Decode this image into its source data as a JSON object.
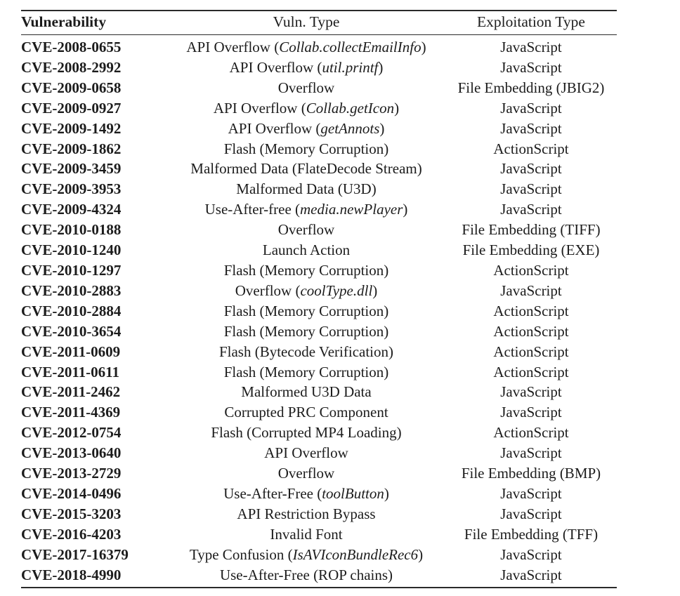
{
  "table": {
    "headers": [
      "Vulnerability",
      "Vuln. Type",
      "Exploitation Type"
    ],
    "rows": [
      {
        "cve": "CVE-2008-0655",
        "vuln_type": "API Overflow (*Collab.collectEmailInfo*)",
        "exploitation": "JavaScript"
      },
      {
        "cve": "CVE-2008-2992",
        "vuln_type": "API Overflow (*util.printf*)",
        "exploitation": "JavaScript"
      },
      {
        "cve": "CVE-2009-0658",
        "vuln_type": "Overflow",
        "exploitation": "File Embedding (JBIG2)"
      },
      {
        "cve": "CVE-2009-0927",
        "vuln_type": "API Overflow (*Collab.getIcon*)",
        "exploitation": "JavaScript"
      },
      {
        "cve": "CVE-2009-1492",
        "vuln_type": "API Overflow (*getAnnots*)",
        "exploitation": "JavaScript"
      },
      {
        "cve": "CVE-2009-1862",
        "vuln_type": "Flash (Memory Corruption)",
        "exploitation": "ActionScript"
      },
      {
        "cve": "CVE-2009-3459",
        "vuln_type": "Malformed Data (FlateDecode Stream)",
        "exploitation": "JavaScript"
      },
      {
        "cve": "CVE-2009-3953",
        "vuln_type": "Malformed Data (U3D)",
        "exploitation": "JavaScript"
      },
      {
        "cve": "CVE-2009-4324",
        "vuln_type": "Use-After-free (*media.newPlayer*)",
        "exploitation": "JavaScript"
      },
      {
        "cve": "CVE-2010-0188",
        "vuln_type": "Overflow",
        "exploitation": "File Embedding (TIFF)"
      },
      {
        "cve": "CVE-2010-1240",
        "vuln_type": "Launch Action",
        "exploitation": "File Embedding (EXE)"
      },
      {
        "cve": "CVE-2010-1297",
        "vuln_type": "Flash (Memory Corruption)",
        "exploitation": "ActionScript"
      },
      {
        "cve": "CVE-2010-2883",
        "vuln_type": "Overflow (*coolType.dll*)",
        "exploitation": "JavaScript"
      },
      {
        "cve": "CVE-2010-2884",
        "vuln_type": "Flash (Memory Corruption)",
        "exploitation": "ActionScript"
      },
      {
        "cve": "CVE-2010-3654",
        "vuln_type": "Flash (Memory Corruption)",
        "exploitation": "ActionScript"
      },
      {
        "cve": "CVE-2011-0609",
        "vuln_type": "Flash (Bytecode Verification)",
        "exploitation": "ActionScript"
      },
      {
        "cve": "CVE-2011-0611",
        "vuln_type": "Flash (Memory Corruption)",
        "exploitation": "ActionScript"
      },
      {
        "cve": "CVE-2011-2462",
        "vuln_type": "Malformed U3D Data",
        "exploitation": "JavaScript"
      },
      {
        "cve": "CVE-2011-4369",
        "vuln_type": "Corrupted PRC Component",
        "exploitation": "JavaScript"
      },
      {
        "cve": "CVE-2012-0754",
        "vuln_type": "Flash (Corrupted MP4 Loading)",
        "exploitation": "ActionScript"
      },
      {
        "cve": "CVE-2013-0640",
        "vuln_type": "API Overflow",
        "exploitation": "JavaScript"
      },
      {
        "cve": "CVE-2013-2729",
        "vuln_type": "Overflow",
        "exploitation": "File Embedding (BMP)"
      },
      {
        "cve": "CVE-2014-0496",
        "vuln_type": "Use-After-Free (*toolButton*)",
        "exploitation": "JavaScript"
      },
      {
        "cve": "CVE-2015-3203",
        "vuln_type": "API Restriction Bypass",
        "exploitation": "JavaScript"
      },
      {
        "cve": "CVE-2016-4203",
        "vuln_type": "Invalid Font",
        "exploitation": "File Embedding (TFF)"
      },
      {
        "cve": "CVE-2017-16379",
        "vuln_type": "Type Confusion (*IsAVIconBundleRec6*)",
        "exploitation": "JavaScript"
      },
      {
        "cve": "CVE-2018-4990",
        "vuln_type": "Use-After-Free (ROP chains)",
        "exploitation": "JavaScript"
      }
    ]
  }
}
